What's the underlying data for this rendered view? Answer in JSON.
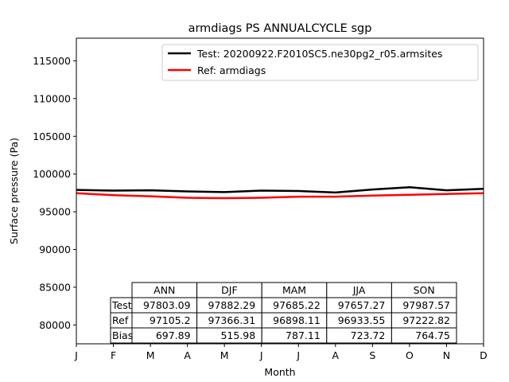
{
  "chart_data": {
    "type": "line",
    "title": "armdiags PS ANNUALCYCLE sgp",
    "xlabel": "Month",
    "ylabel": "Surface pressure (Pa)",
    "categories": [
      "J",
      "F",
      "M",
      "A",
      "M",
      "J",
      "J",
      "A",
      "S",
      "O",
      "N",
      "D"
    ],
    "ylim": [
      77500,
      118000
    ],
    "yticks": [
      80000,
      85000,
      90000,
      95000,
      100000,
      105000,
      110000,
      115000
    ],
    "series": [
      {
        "name": "Test: 20200922.F2010SC5.ne30pg2_r05.armsites",
        "color": "#000000",
        "values": [
          97900,
          97800,
          97850,
          97700,
          97600,
          97800,
          97750,
          97550,
          97950,
          98250,
          97850,
          98050
        ]
      },
      {
        "name": "Ref: armdiags",
        "color": "#ff0000",
        "values": [
          97450,
          97200,
          97050,
          96850,
          96800,
          96850,
          97000,
          97000,
          97150,
          97250,
          97350,
          97450
        ]
      }
    ],
    "table": {
      "col_labels": [
        "ANN",
        "DJF",
        "MAM",
        "JJA",
        "SON"
      ],
      "row_labels": [
        "Test",
        "Ref",
        "Bias"
      ],
      "cells": [
        [
          "97803.09",
          "97882.29",
          "97685.22",
          "97657.27",
          "97987.57"
        ],
        [
          "97105.2",
          "97366.31",
          "96898.11",
          "96933.55",
          "97222.82"
        ],
        [
          "697.89",
          "515.98",
          "787.11",
          "723.72",
          "764.75"
        ]
      ]
    }
  }
}
